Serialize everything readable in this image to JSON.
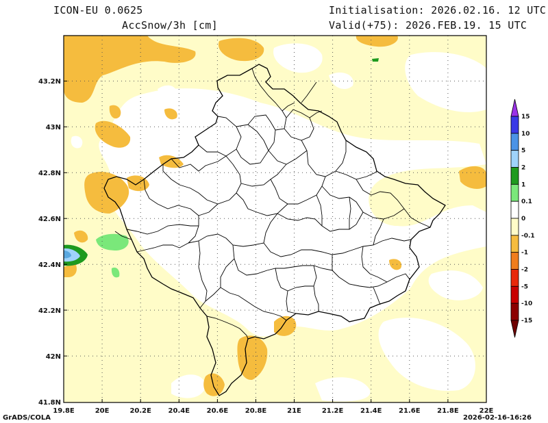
{
  "header": {
    "model": "ICON-EU 0.0625",
    "field": "AccSnow/3h [cm]",
    "init": "Initialisation: 2026.02.16. 12 UTC",
    "valid": "Valid(+75): 2026.FEB.19. 15 UTC"
  },
  "footer": {
    "software": "GrADS/COLA",
    "timestamp": "2026-02-16-16:26"
  },
  "axes": {
    "x_ticks": [
      "19.8E",
      "20E",
      "20.2E",
      "20.4E",
      "20.6E",
      "20.8E",
      "21E",
      "21.2E",
      "21.4E",
      "21.6E",
      "21.8E",
      "22E"
    ],
    "y_ticks": [
      "43.2N",
      "43N",
      "42.8N",
      "42.6N",
      "42.4N",
      "42.2N",
      "42N",
      "41.8N"
    ]
  },
  "legend": {
    "labels": [
      "15",
      "10",
      "5",
      "2",
      "1",
      "0.1",
      "0",
      "-0.1",
      "-1",
      "-2",
      "-5",
      "-10",
      "-15"
    ],
    "colors": [
      "#9a32e6",
      "#3a3ae6",
      "#4b93e6",
      "#9fd3fa",
      "#1e9a1e",
      "#7ae87a",
      "#ffffff",
      "#fffcc8",
      "#f5bc3e",
      "#f07d1e",
      "#e8280a",
      "#c80000",
      "#8c0000",
      "#6e0000"
    ]
  },
  "colors": {
    "light_yellow": "#fffcc8",
    "orange": "#f5bc3e",
    "dark_orange": "#f07d1e",
    "green": "#1e9a1e",
    "light_green": "#7ae87a",
    "light_blue": "#9fd3fa"
  }
}
